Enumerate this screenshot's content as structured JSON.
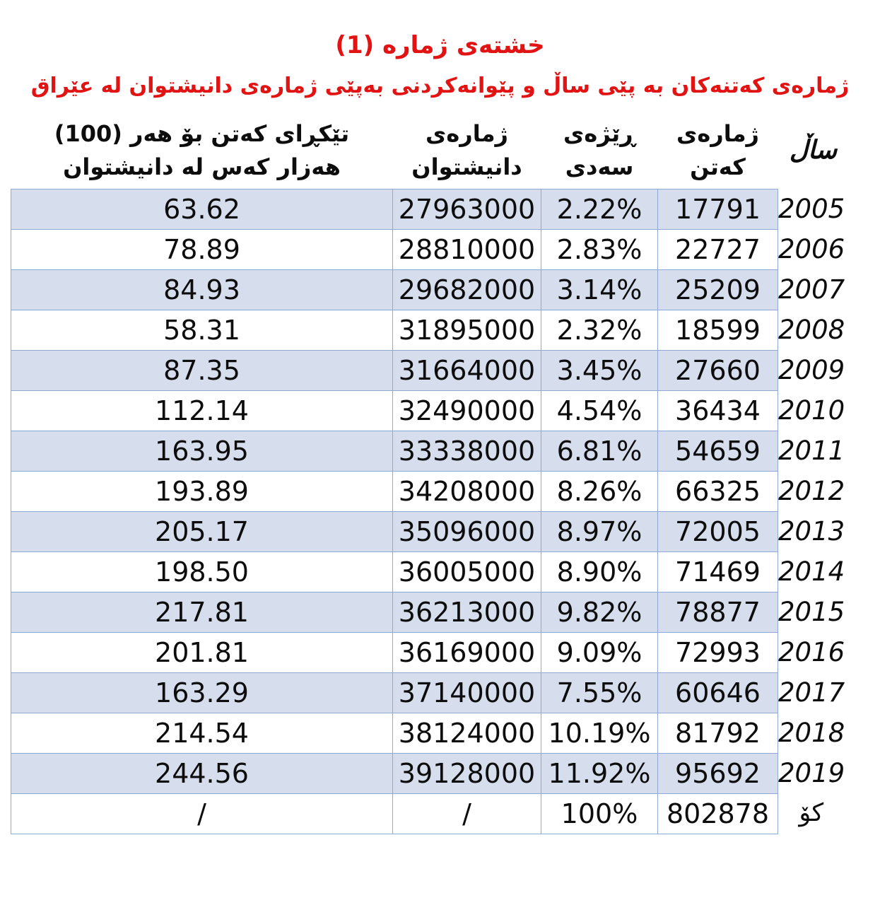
{
  "title": "خشتەی ژمارە (1)",
  "subtitle": "ژمارەی کەتنەکان بە پێی ساڵ و پێوانەکردنی بەپێی ژمارەی دانیشتوان لە عێراق",
  "table": {
    "headers": {
      "year": "ساڵ",
      "cases": "ژمارەی\nکەتن",
      "percent": "ڕێژەی\nسەدی",
      "population": "ژمارەی\nدانیشتوان",
      "avg": "تێکڕای کەتن بۆ هەر (100)\nهەزار کەس لە دانیشتوان"
    },
    "rows": [
      {
        "year": "2005",
        "cases": "17791",
        "percent": "2.22%",
        "population": "27963000",
        "avg": "63.62"
      },
      {
        "year": "2006",
        "cases": "22727",
        "percent": "2.83%",
        "population": "28810000",
        "avg": "78.89"
      },
      {
        "year": "2007",
        "cases": "25209",
        "percent": "3.14%",
        "population": "29682000",
        "avg": "84.93"
      },
      {
        "year": "2008",
        "cases": "18599",
        "percent": "2.32%",
        "population": "31895000",
        "avg": "58.31"
      },
      {
        "year": "2009",
        "cases": "27660",
        "percent": "3.45%",
        "population": "31664000",
        "avg": "87.35"
      },
      {
        "year": "2010",
        "cases": "36434",
        "percent": "4.54%",
        "population": "32490000",
        "avg": "112.14"
      },
      {
        "year": "2011",
        "cases": "54659",
        "percent": "6.81%",
        "population": "33338000",
        "avg": "163.95"
      },
      {
        "year": "2012",
        "cases": "66325",
        "percent": "8.26%",
        "population": "34208000",
        "avg": "193.89"
      },
      {
        "year": "2013",
        "cases": "72005",
        "percent": "8.97%",
        "population": "35096000",
        "avg": "205.17"
      },
      {
        "year": "2014",
        "cases": "71469",
        "percent": "8.90%",
        "population": "36005000",
        "avg": "198.50"
      },
      {
        "year": "2015",
        "cases": "78877",
        "percent": "9.82%",
        "population": "36213000",
        "avg": "217.81"
      },
      {
        "year": "2016",
        "cases": "72993",
        "percent": "9.09%",
        "population": "36169000",
        "avg": "201.81"
      },
      {
        "year": "2017",
        "cases": "60646",
        "percent": "7.55%",
        "population": "37140000",
        "avg": "163.29"
      },
      {
        "year": "2018",
        "cases": "81792",
        "percent": "10.19%",
        "population": "38124000",
        "avg": "214.54"
      },
      {
        "year": "2019",
        "cases": "95692",
        "percent": "11.92%",
        "population": "39128000",
        "avg": "244.56"
      },
      {
        "year": "کۆ",
        "cases": "802878",
        "percent": "100%",
        "population": "/",
        "avg": "/"
      }
    ]
  },
  "colors": {
    "title_red": "#e11313",
    "row_shade": "#d6deee",
    "table_border": "#8faad6"
  }
}
